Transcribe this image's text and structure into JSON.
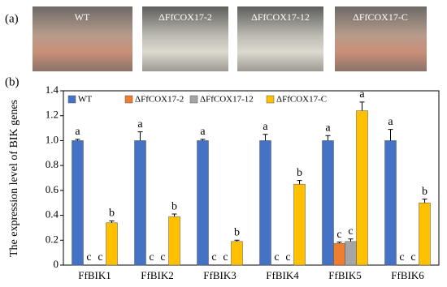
{
  "panel_a": {
    "label": "(a)",
    "photos": [
      "WT",
      "ΔFfCOX17-2",
      "ΔFfCOX17-12",
      "ΔFfCOX17-C"
    ]
  },
  "chart_data": {
    "type": "bar",
    "panel_label": "(b)",
    "y_label": "The expression level of BIK genes",
    "categories": [
      "FfBIK1",
      "FfBIK2",
      "FfBIK3",
      "FfBIK4",
      "FfBIK5",
      "FfBIK6"
    ],
    "series": [
      {
        "name": "WT",
        "color": "#4472c4",
        "values": [
          1.0,
          1.0,
          1.0,
          1.0,
          1.0,
          1.0
        ],
        "errors": [
          0.01,
          0.07,
          0.01,
          0.05,
          0.04,
          0.09
        ],
        "letters": [
          "a",
          "a",
          "a",
          "a",
          "a",
          "a"
        ]
      },
      {
        "name": "ΔFfCOX17-2",
        "color": "#ed7d31",
        "values": [
          0,
          0,
          0,
          0,
          0.175,
          0
        ],
        "errors": [
          0,
          0,
          0,
          0,
          0.01,
          0
        ],
        "letters": [
          "c",
          "c",
          "c",
          "c",
          "c",
          "c"
        ]
      },
      {
        "name": "ΔFfCOX17-12",
        "color": "#a5a5a5",
        "values": [
          0,
          0,
          0,
          0,
          0.19,
          0
        ],
        "errors": [
          0,
          0,
          0,
          0,
          0.02,
          0
        ],
        "letters": [
          "c",
          "c",
          "c",
          "c",
          "c",
          "c"
        ]
      },
      {
        "name": "ΔFfCOX17-C",
        "color": "#ffc000",
        "values": [
          0.34,
          0.39,
          0.19,
          0.65,
          1.24,
          0.5
        ],
        "errors": [
          0.015,
          0.02,
          0.01,
          0.03,
          0.07,
          0.03
        ],
        "letters": [
          "b",
          "b",
          "b",
          "b",
          "a",
          "b"
        ]
      }
    ],
    "ylim": [
      0,
      1.4
    ],
    "yticks": [
      0,
      0.2,
      0.4,
      0.6,
      0.8,
      {
        "value": 1,
        "label": "1.0"
      },
      1.2,
      1.4
    ]
  }
}
